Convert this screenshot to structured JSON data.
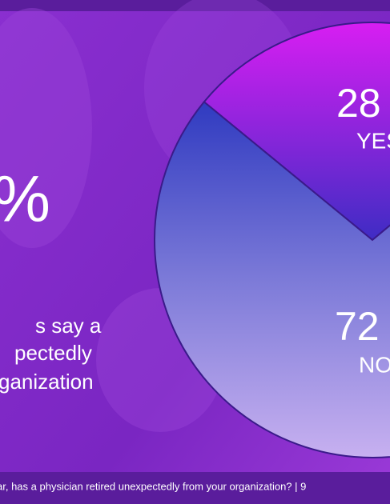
{
  "chart_data": {
    "type": "pie",
    "categories": [
      "YES",
      "NO"
    ],
    "values": [
      28,
      72
    ],
    "value_labels": [
      "28",
      "72"
    ],
    "start_angle": 309.4,
    "annotations": [
      "%",
      "s say a",
      "pectedly",
      "ganization"
    ],
    "footer": "ar, has a physician retired unexpectedly from your organization?  |  9"
  }
}
